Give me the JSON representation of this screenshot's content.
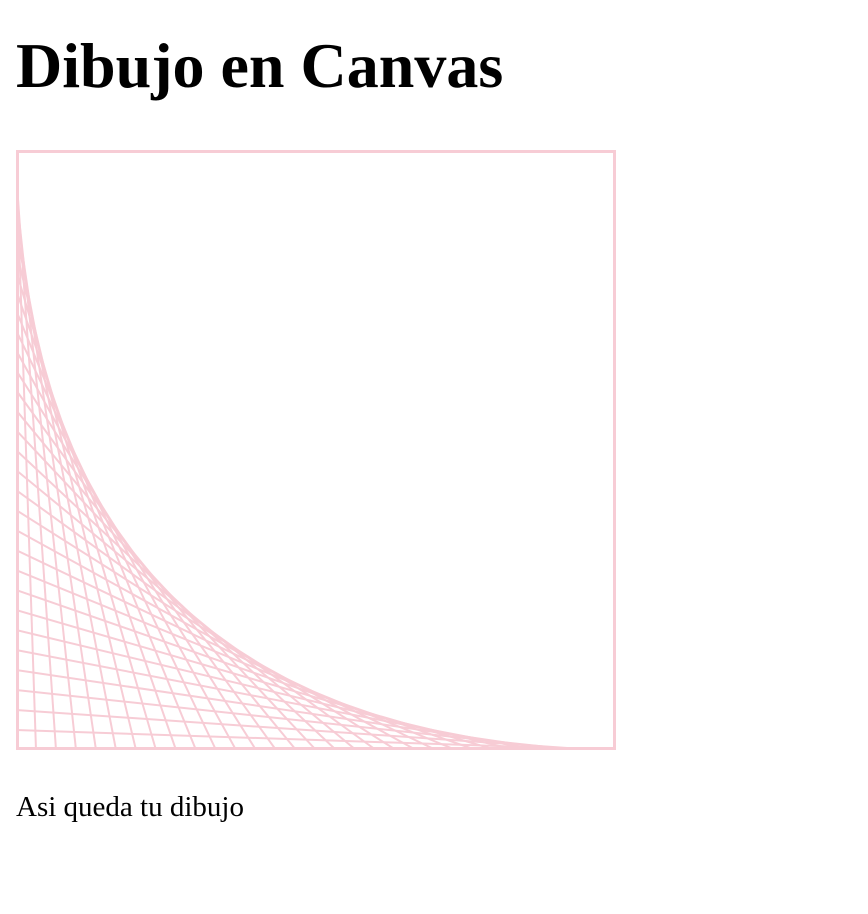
{
  "page": {
    "title": "Dibujo en Canvas",
    "caption": "Asi queda tu dibujo"
  },
  "drawing": {
    "stroke_color": "#f7ccd5",
    "line_count": 30
  }
}
